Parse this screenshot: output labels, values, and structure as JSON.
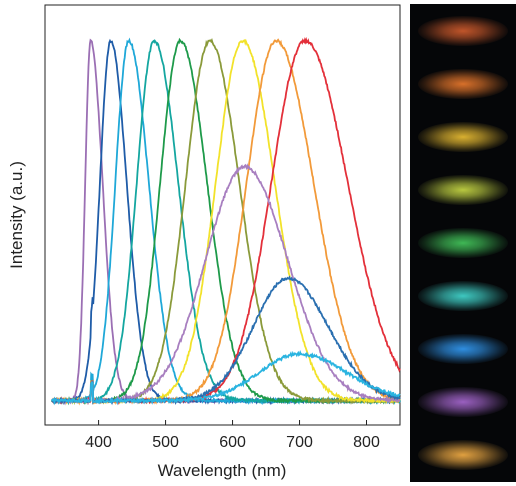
{
  "chart_data": {
    "type": "line",
    "title": "",
    "xlabel": "Wavelength (nm)",
    "ylabel": "Intensity (a.u.)",
    "xlim": [
      320,
      850
    ],
    "ylim": [
      0,
      1.05
    ],
    "xticks": [
      400,
      500,
      600,
      700,
      800
    ],
    "grid": false,
    "legend": "none",
    "series": [
      {
        "color": "#9b6fb4",
        "peak_nm": 388,
        "peak_intensity": 1.0,
        "width_left": 8,
        "width_right": 18
      },
      {
        "color": "#1f5ca8",
        "peak_nm": 418,
        "peak_intensity": 1.0,
        "width_left": 16,
        "width_right": 24
      },
      {
        "color": "#1fa8d8",
        "peak_nm": 445,
        "peak_intensity": 1.0,
        "width_left": 20,
        "width_right": 30
      },
      {
        "color": "#14a6a0",
        "peak_nm": 483,
        "peak_intensity": 1.0,
        "width_left": 26,
        "width_right": 36
      },
      {
        "color": "#1e9a4a",
        "peak_nm": 522,
        "peak_intensity": 1.0,
        "width_left": 30,
        "width_right": 40
      },
      {
        "color": "#8a9a3a",
        "peak_nm": 566,
        "peak_intensity": 1.0,
        "width_left": 36,
        "width_right": 44
      },
      {
        "color": "#f2e22a",
        "peak_nm": 615,
        "peak_intensity": 1.0,
        "width_left": 40,
        "width_right": 48
      },
      {
        "color": "#f29a3a",
        "peak_nm": 665,
        "peak_intensity": 1.0,
        "width_left": 44,
        "width_right": 56
      },
      {
        "color": "#e3303a",
        "peak_nm": 708,
        "peak_intensity": 1.0,
        "width_left": 50,
        "width_right": 64
      },
      {
        "color": "#a87fc0",
        "peak_nm": 618,
        "peak_intensity": 0.65,
        "width_left": 58,
        "width_right": 64
      },
      {
        "color": "#2a6fb0",
        "peak_nm": 683,
        "peak_intensity": 0.34,
        "width_left": 52,
        "width_right": 60
      },
      {
        "color": "#2ab4e0",
        "peak_nm": 700,
        "peak_intensity": 0.13,
        "width_left": 60,
        "width_right": 70
      }
    ]
  },
  "emission_strip": {
    "spots": [
      {
        "color": "#c0552a"
      },
      {
        "color": "#d8702a"
      },
      {
        "color": "#d9b030"
      },
      {
        "color": "#b8c840"
      },
      {
        "color": "#3fb855"
      },
      {
        "color": "#3ec8c0"
      },
      {
        "color": "#2f8ee0"
      },
      {
        "color": "#9a60c0"
      },
      {
        "color": "#e0a040"
      }
    ]
  }
}
